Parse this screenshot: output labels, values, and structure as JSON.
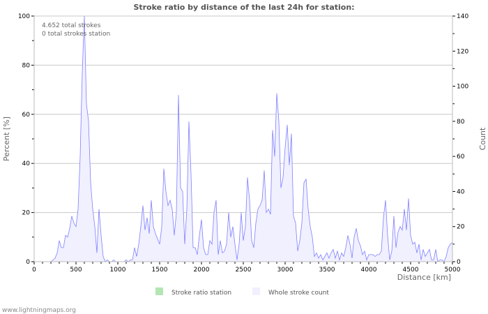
{
  "chart_data": {
    "type": "area",
    "title": "Stroke ratio by distance of the last 24h for station:",
    "annotations": [
      "4.652 total strokes",
      "0 total strokes station"
    ],
    "xlabel": "Distance   [km]",
    "ylabel_left": "Percent   [%]",
    "ylabel_right": "Count",
    "xlim": [
      0,
      5000
    ],
    "ylim_left": [
      0,
      100
    ],
    "ylim_right": [
      0,
      140
    ],
    "x_ticks": [
      0,
      500,
      1000,
      1500,
      2000,
      2500,
      3000,
      3500,
      4000,
      4500,
      5000
    ],
    "y_left_ticks": [
      0,
      20,
      40,
      60,
      80,
      100
    ],
    "y_right_ticks": [
      0,
      20,
      40,
      60,
      80,
      100,
      120,
      140
    ],
    "grid": true,
    "x_step_km": 25,
    "series": [
      {
        "name": "Stroke ratio station",
        "color": "#b3e6b3",
        "axis": "left",
        "values": []
      },
      {
        "name": "Whole stroke count",
        "color": "#8080ff",
        "fill": "#f0f0ff",
        "axis": "right",
        "values": [
          0,
          0,
          0,
          0,
          0,
          0,
          0,
          0,
          0,
          1,
          2,
          5,
          12,
          8,
          8,
          15,
          14,
          19,
          26,
          22,
          20,
          30,
          60,
          108,
          140,
          90,
          80,
          45,
          30,
          20,
          5,
          30,
          15,
          3,
          0,
          1,
          0,
          0,
          1,
          0,
          0,
          0,
          0,
          0,
          1,
          0,
          1,
          1,
          8,
          3,
          10,
          20,
          32,
          18,
          25,
          16,
          35,
          20,
          16,
          13,
          10,
          20,
          53,
          40,
          32,
          35,
          30,
          15,
          28,
          95,
          42,
          40,
          10,
          30,
          80,
          50,
          8,
          8,
          4,
          15,
          24,
          8,
          4,
          4,
          12,
          10,
          28,
          35,
          4,
          12,
          5,
          6,
          10,
          28,
          14,
          20,
          10,
          1,
          10,
          28,
          12,
          20,
          48,
          35,
          12,
          8,
          22,
          30,
          32,
          35,
          52,
          28,
          30,
          27,
          75,
          60,
          96,
          80,
          42,
          48,
          65,
          78,
          55,
          73,
          26,
          22,
          6,
          12,
          22,
          45,
          47,
          30,
          20,
          14,
          3,
          5,
          2,
          4,
          1,
          3,
          5,
          2,
          5,
          7,
          2,
          6,
          1,
          5,
          3,
          8,
          15,
          10,
          2,
          14,
          19,
          12,
          9,
          4,
          6,
          1,
          4,
          4,
          4,
          3,
          4,
          4,
          6,
          25,
          35,
          15,
          1,
          6,
          26,
          8,
          17,
          20,
          18,
          30,
          18,
          36,
          15,
          10,
          11,
          5,
          10,
          1,
          7,
          3,
          5,
          7,
          1,
          1,
          7,
          0,
          1,
          1,
          0,
          3,
          8,
          10,
          11
        ]
      }
    ],
    "legend": "bottom-center"
  },
  "footer": "www.lightningmaps.org"
}
